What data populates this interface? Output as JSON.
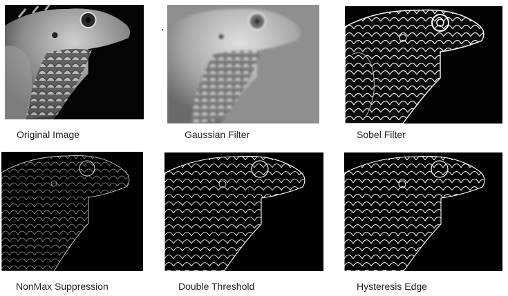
{
  "figure": {
    "panels": [
      {
        "id": "original",
        "caption": "Original Image",
        "style": "photo"
      },
      {
        "id": "gaussian",
        "caption": "Gaussian Filter",
        "style": "blur"
      },
      {
        "id": "sobel",
        "caption": "Sobel Filter",
        "style": "sobel"
      },
      {
        "id": "nonmax",
        "caption": "NonMax Suppression",
        "style": "thin"
      },
      {
        "id": "double",
        "caption": "Double Threshold",
        "style": "threshold"
      },
      {
        "id": "hysteresis",
        "caption": "Hysteresis Edge",
        "style": "edge"
      }
    ]
  }
}
